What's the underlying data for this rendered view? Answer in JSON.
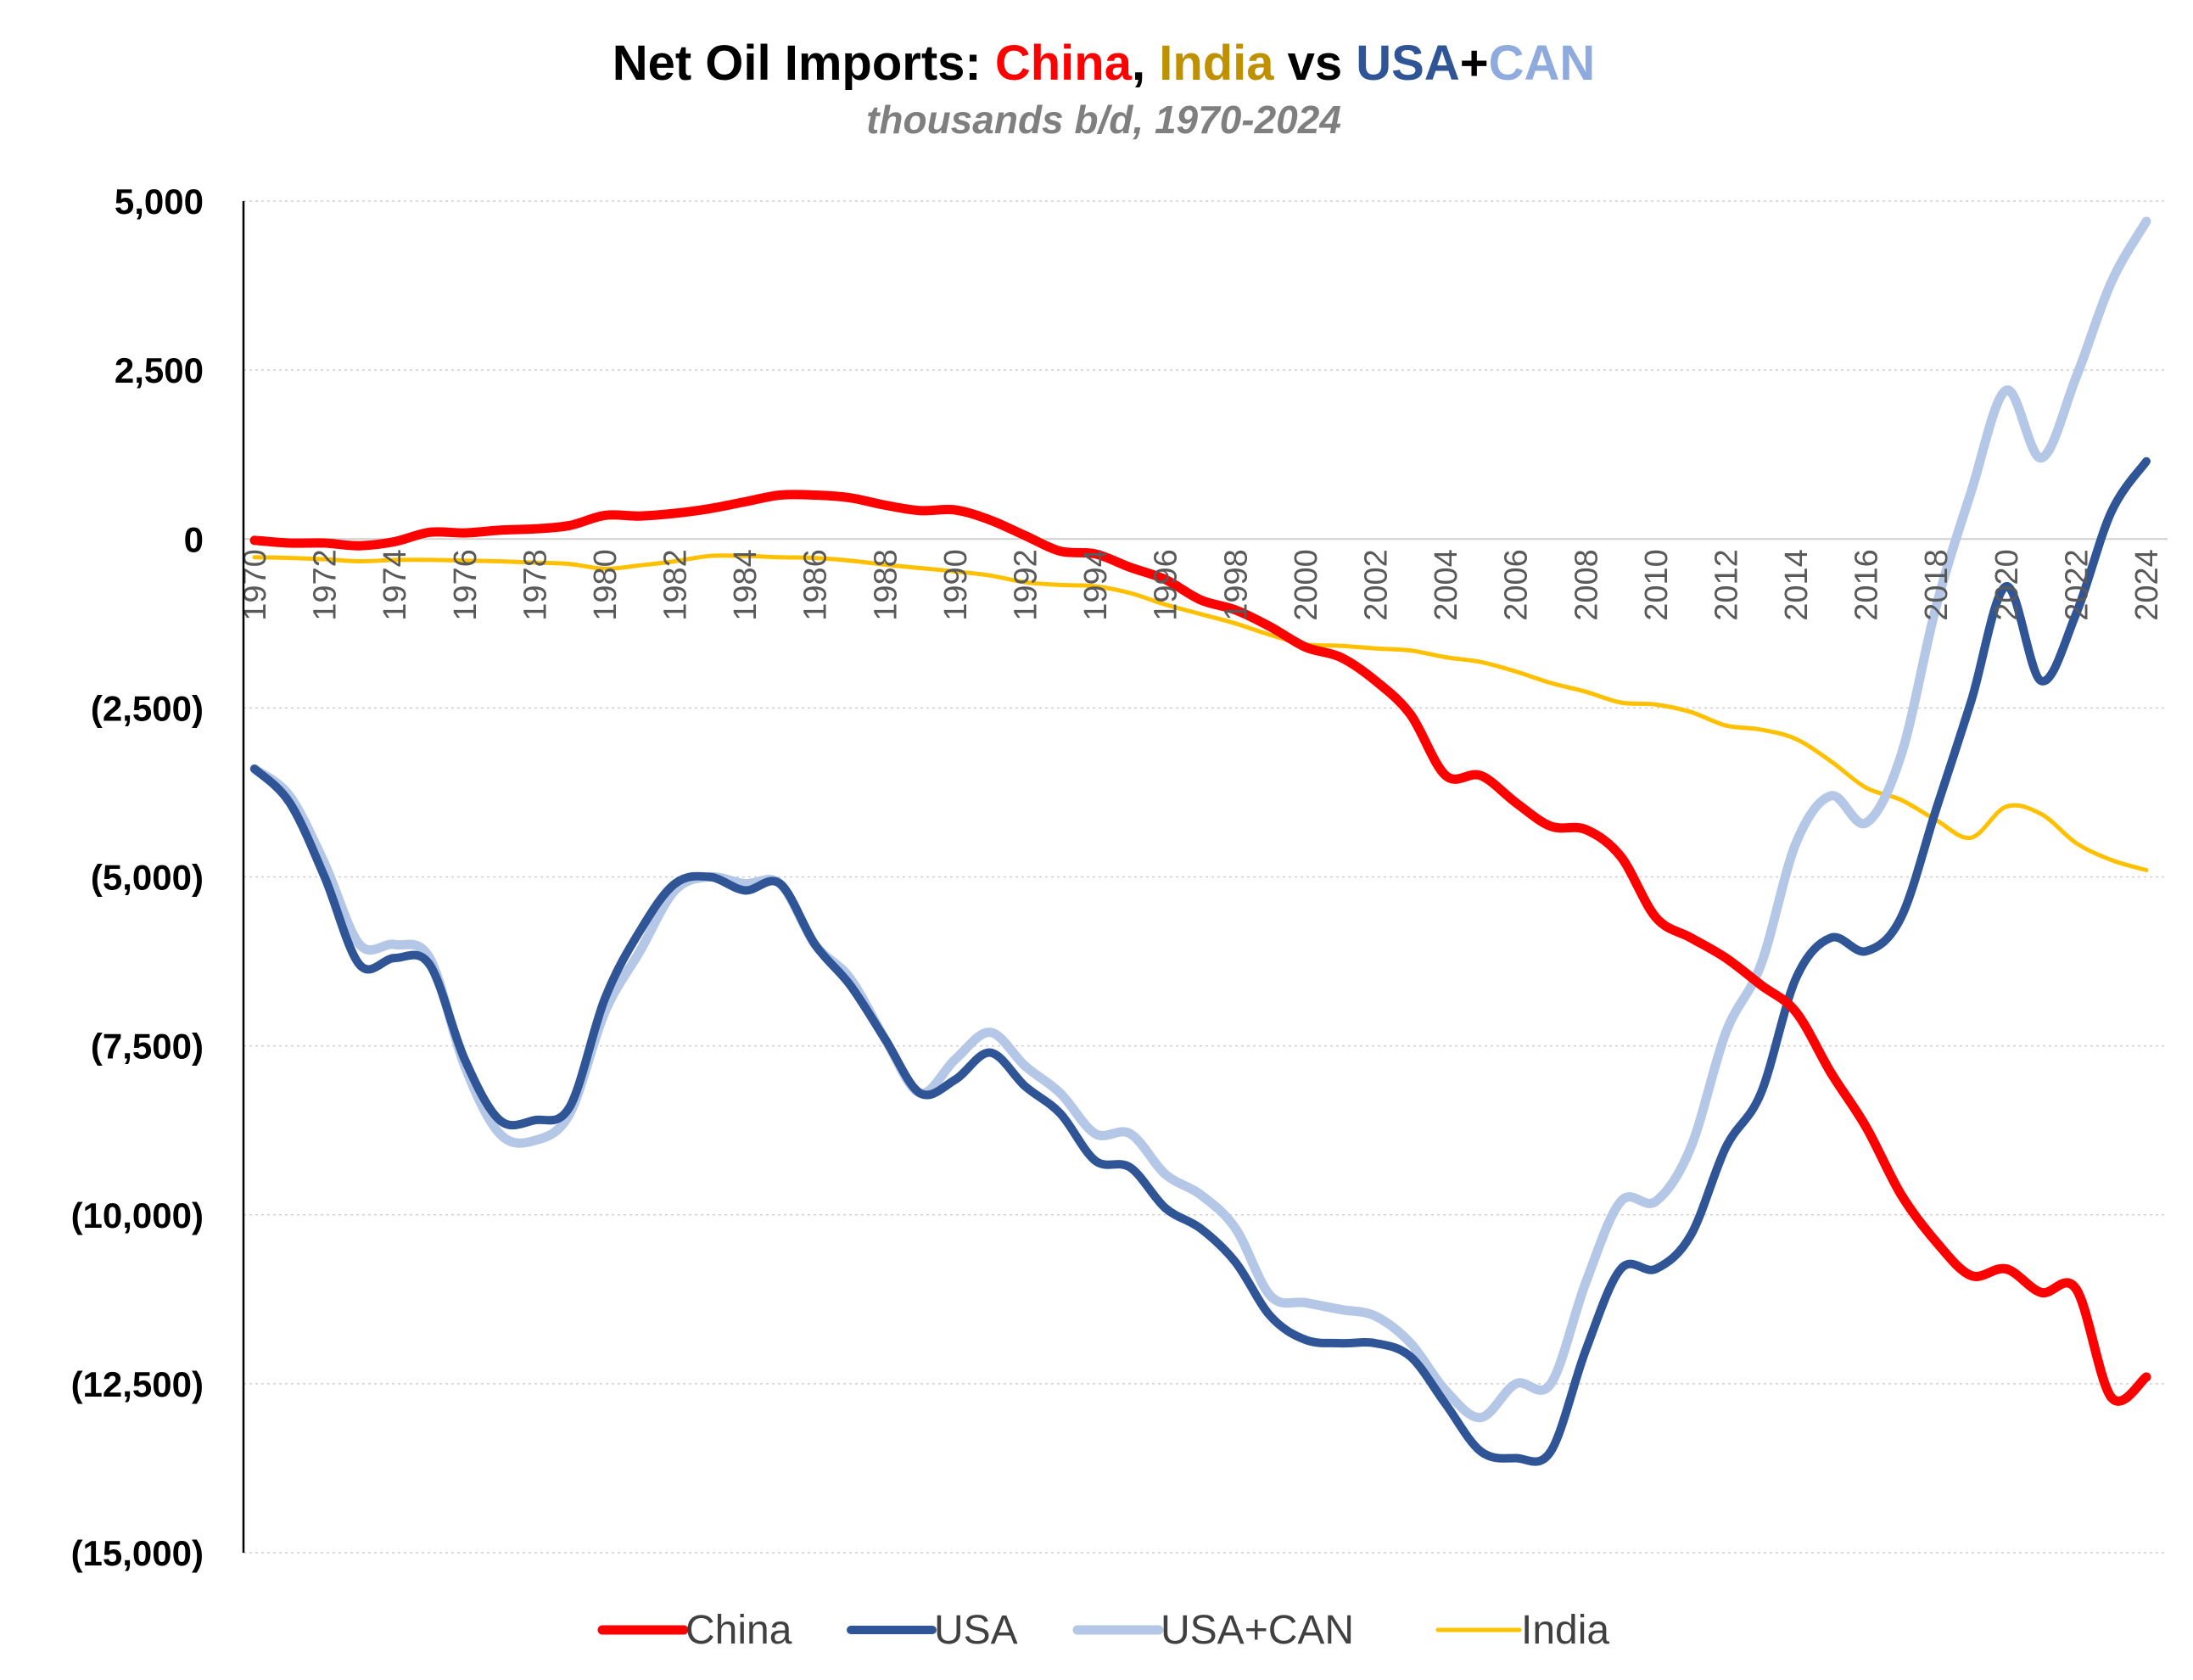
{
  "chart_data": {
    "type": "line",
    "title": {
      "parts": [
        {
          "text": "Net Oil Imports: ",
          "color": "#000000"
        },
        {
          "text": "China",
          "color": "#ff0000"
        },
        {
          "text": ", ",
          "color": "#000000"
        },
        {
          "text": "India",
          "color": "#bf9000"
        },
        {
          "text": " vs ",
          "color": "#000000"
        },
        {
          "text": "USA",
          "color": "#2f5597"
        },
        {
          "text": "+",
          "color": "#000000"
        },
        {
          "text": "CAN",
          "color": "#8faadc"
        }
      ]
    },
    "subtitle": "thousands b/d, 1970-2024",
    "xlabel": "",
    "ylabel": "",
    "xlim": [
      1970,
      2024
    ],
    "ylim": [
      -15000,
      5000
    ],
    "y_ticks": [
      5000,
      2500,
      0,
      -2500,
      -5000,
      -7500,
      -10000,
      -12500,
      -15000
    ],
    "y_tick_labels": [
      "5,000",
      "2,500",
      "0",
      "(2,500)",
      "(5,000)",
      "(7,500)",
      "(10,000)",
      "(12,500)",
      "(15,000)"
    ],
    "x_tick_labels": [
      "1970",
      "1972",
      "1974",
      "1976",
      "1978",
      "1980",
      "1982",
      "1984",
      "1986",
      "1988",
      "1990",
      "1992",
      "1994",
      "1996",
      "1998",
      "2000",
      "2002",
      "2004",
      "2006",
      "2008",
      "2010",
      "2012",
      "2014",
      "2016",
      "2018",
      "2020",
      "2022",
      "2024"
    ],
    "grid": true,
    "legend_position": "bottom",
    "x": [
      1970,
      1971,
      1972,
      1973,
      1974,
      1975,
      1976,
      1977,
      1978,
      1979,
      1980,
      1981,
      1982,
      1983,
      1984,
      1985,
      1986,
      1987,
      1988,
      1989,
      1990,
      1991,
      1992,
      1993,
      1994,
      1995,
      1996,
      1997,
      1998,
      1999,
      2000,
      2001,
      2002,
      2003,
      2004,
      2005,
      2006,
      2007,
      2008,
      2009,
      2010,
      2011,
      2012,
      2013,
      2014,
      2015,
      2016,
      2017,
      2018,
      2019,
      2020,
      2021,
      2022,
      2023,
      2024
    ],
    "series": [
      {
        "name": "China",
        "color": "#ff0000",
        "width": 11,
        "values": [
          -20,
          -60,
          -60,
          -100,
          -40,
          100,
          90,
          130,
          150,
          200,
          350,
          340,
          380,
          450,
          550,
          650,
          650,
          610,
          500,
          420,
          430,
          280,
          50,
          -180,
          -220,
          -420,
          -600,
          -900,
          -1050,
          -1300,
          -1600,
          -1750,
          -2100,
          -2600,
          -3500,
          -3500,
          -3900,
          -4250,
          -4300,
          -4700,
          -5600,
          -5900,
          -6200,
          -6600,
          -7000,
          -7900,
          -8700,
          -9700,
          -10400,
          -10900,
          -10800,
          -11150,
          -11100,
          -12700,
          -12400
        ]
      },
      {
        "name": "USA",
        "color": "#2f5597",
        "width": 10,
        "values": [
          -3400,
          -3900,
          -5000,
          -6300,
          -6200,
          -6300,
          -7700,
          -8600,
          -8600,
          -8400,
          -6800,
          -5800,
          -5100,
          -5000,
          -5200,
          -5100,
          -6000,
          -6600,
          -7400,
          -8200,
          -8000,
          -7600,
          -8100,
          -8500,
          -9200,
          -9300,
          -9900,
          -10200,
          -10700,
          -11500,
          -11850,
          -11900,
          -11900,
          -12100,
          -12800,
          -13500,
          -13600,
          -13500,
          -12000,
          -10800,
          -10800,
          -10300,
          -9000,
          -8200,
          -6500,
          -5900,
          -6100,
          -5600,
          -4000,
          -2400,
          -700,
          -2100,
          -1100,
          400,
          1150
        ]
      },
      {
        "name": "USA+CAN",
        "color": "#b4c7e7",
        "width": 11,
        "values": [
          -3400,
          -3800,
          -4800,
          -6000,
          -6000,
          -6200,
          -7800,
          -8800,
          -8900,
          -8500,
          -7000,
          -6100,
          -5200,
          -5000,
          -5100,
          -5100,
          -6000,
          -6500,
          -7400,
          -8200,
          -7700,
          -7300,
          -7800,
          -8200,
          -8800,
          -8800,
          -9400,
          -9700,
          -10200,
          -11200,
          -11300,
          -11400,
          -11500,
          -11900,
          -12600,
          -13000,
          -12500,
          -12500,
          -11000,
          -9800,
          -9800,
          -9000,
          -7300,
          -6300,
          -4500,
          -3800,
          -4200,
          -3200,
          -1000,
          700,
          2200,
          1200,
          2400,
          3800,
          4700
        ]
      },
      {
        "name": "India",
        "color": "#ffc000",
        "width": 5,
        "values": [
          -270,
          -280,
          -300,
          -330,
          -310,
          -310,
          -320,
          -330,
          -350,
          -370,
          -440,
          -390,
          -330,
          -250,
          -250,
          -270,
          -280,
          -320,
          -380,
          -430,
          -480,
          -540,
          -640,
          -680,
          -700,
          -800,
          -970,
          -1110,
          -1250,
          -1420,
          -1560,
          -1580,
          -1620,
          -1650,
          -1750,
          -1820,
          -1960,
          -2130,
          -2260,
          -2420,
          -2450,
          -2560,
          -2760,
          -2820,
          -2960,
          -3290,
          -3680,
          -3860,
          -4160,
          -4420,
          -3960,
          -4070,
          -4500,
          -4750,
          -4900
        ]
      }
    ]
  }
}
